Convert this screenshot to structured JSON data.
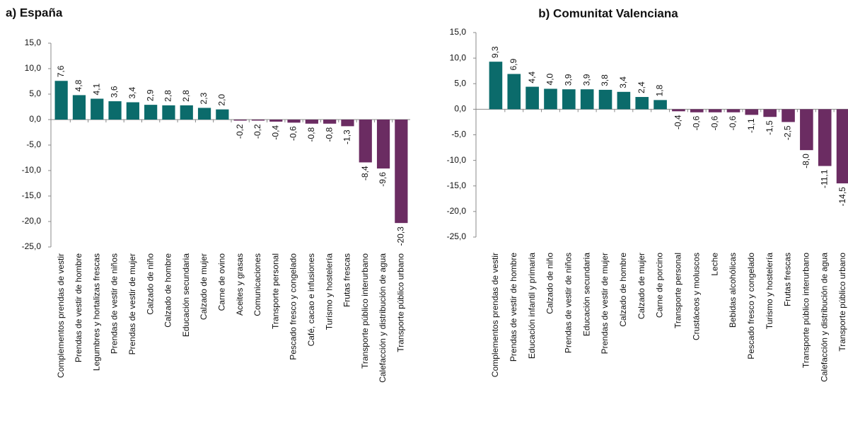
{
  "chart_data": [
    {
      "type": "bar",
      "title": "a) España",
      "categories": [
        "Complementos prendas de vestir",
        "Prendas de vestir de hombre",
        "Legumbres y hortalizas frescas",
        "Prendas de vestir de niños",
        "Prendas de vestir de mujer",
        "Calzado de niño",
        "Calzado de hombre",
        "Educación secundaria",
        "Calzado de mujer",
        "Carne de ovino",
        "Aceites y grasas",
        "Comunicaciones",
        "Transporte personal",
        "Pescado fresco y congelado",
        "Café, cacao e infusiones",
        "Turismo y hostelería",
        "Frutas frescas",
        "Transporte público interurbano",
        "Calefacción y distribución de agua",
        "Transporte público urbano"
      ],
      "values": [
        7.6,
        4.8,
        4.1,
        3.6,
        3.4,
        2.9,
        2.8,
        2.8,
        2.3,
        2.0,
        -0.2,
        -0.2,
        -0.4,
        -0.6,
        -0.8,
        -0.8,
        -1.3,
        -8.4,
        -9.6,
        -20.3
      ],
      "value_labels": [
        "7,6",
        "4,8",
        "4,1",
        "3,6",
        "3,4",
        "2,9",
        "2,8",
        "2,8",
        "2,3",
        "2,0",
        "-0,2",
        "-0,2",
        "-0,4",
        "-0,6",
        "-0,8",
        "-0,8",
        "-1,3",
        "-8,4",
        "-9,6",
        "-20,3"
      ],
      "colors": {
        "positive": "#0b6b6b",
        "negative": "#6b2c62"
      },
      "ylim": [
        -25,
        15
      ],
      "yticks": [
        {
          "value": -25,
          "label": "-25,0"
        },
        {
          "value": -20,
          "label": "-20,0"
        },
        {
          "value": -15,
          "label": "-15,0"
        },
        {
          "value": -10,
          "label": "-10,0"
        },
        {
          "value": -5,
          "label": "-5,0"
        },
        {
          "value": 0,
          "label": "0,0"
        },
        {
          "value": 5,
          "label": "5,0"
        },
        {
          "value": 10,
          "label": "10,0"
        },
        {
          "value": 15,
          "label": "15,0"
        }
      ]
    },
    {
      "type": "bar",
      "title": "b) Comunitat Valenciana",
      "categories": [
        "Complementos prendas de vestir",
        "Prendas de vestir de hombre",
        "Educación infantil y primaria",
        "Calzado de niño",
        "Prendas de vestir de niños",
        "Educación secundaria",
        "Prendas de vestir de mujer",
        "Calzado de hombre",
        "Calzado de mujer",
        "Carne de porcino",
        "Transporte personal",
        "Crustáceos y moluscos",
        "Leche",
        "Bebidas alcohólicas",
        "Pescado fresco y congelado",
        "Turismo y hostelería",
        "Frutas frescas",
        "Transporte público interurbano",
        "Calefacción y distribución de agua",
        "Transporte público urbano"
      ],
      "values": [
        9.3,
        6.9,
        4.4,
        4.0,
        3.9,
        3.9,
        3.8,
        3.4,
        2.4,
        1.8,
        -0.4,
        -0.6,
        -0.6,
        -0.6,
        -1.1,
        -1.5,
        -2.5,
        -8.0,
        -11.1,
        -14.5
      ],
      "value_labels": [
        "9,3",
        "6,9",
        "4,4",
        "4,0",
        "3,9",
        "3,9",
        "3,8",
        "3,4",
        "2,4",
        "1,8",
        "-0,4",
        "-0,6",
        "-0,6",
        "-0,6",
        "-1,1",
        "-1,5",
        "-2,5",
        "-8,0",
        "-11,1",
        "-14,5"
      ],
      "colors": {
        "positive": "#0b6b6b",
        "negative": "#6b2c62"
      },
      "ylim": [
        -25,
        15
      ],
      "yticks": [
        {
          "value": -25,
          "label": "-25,0"
        },
        {
          "value": -20,
          "label": "-20,0"
        },
        {
          "value": -15,
          "label": "-15,0"
        },
        {
          "value": -10,
          "label": "-10,0"
        },
        {
          "value": -5,
          "label": "-5,0"
        },
        {
          "value": 0,
          "label": "0,0"
        },
        {
          "value": 5,
          "label": "5,0"
        },
        {
          "value": 10,
          "label": "10,0"
        },
        {
          "value": 15,
          "label": "15,0"
        }
      ]
    }
  ]
}
